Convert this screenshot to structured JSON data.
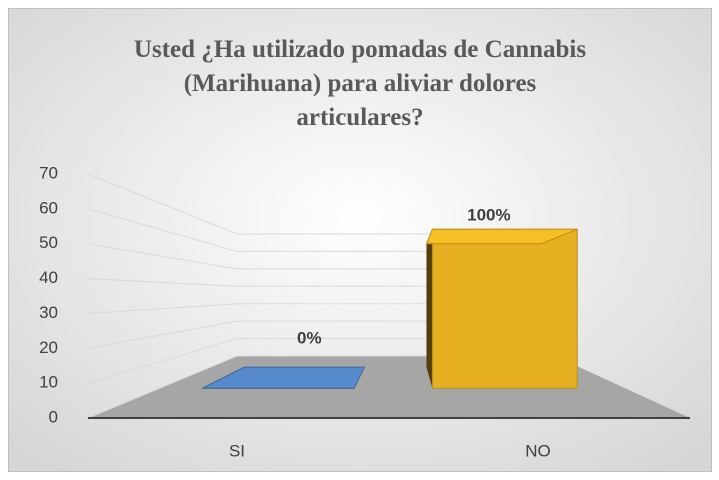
{
  "chart_data": {
    "type": "bar3d",
    "title": "Usted ¿Ha utilizado pomadas de Cannabis (Marihuana) para aliviar dolores articulares?",
    "categories": [
      "SI",
      "NO"
    ],
    "values": [
      0,
      60
    ],
    "annotations": [
      "0%",
      "100%"
    ],
    "colors": [
      "#4f81bd",
      "#e6b022"
    ],
    "ylim": [
      0,
      70
    ],
    "yticks": [
      0,
      10,
      20,
      30,
      40,
      50,
      60,
      70
    ],
    "grid": true
  }
}
